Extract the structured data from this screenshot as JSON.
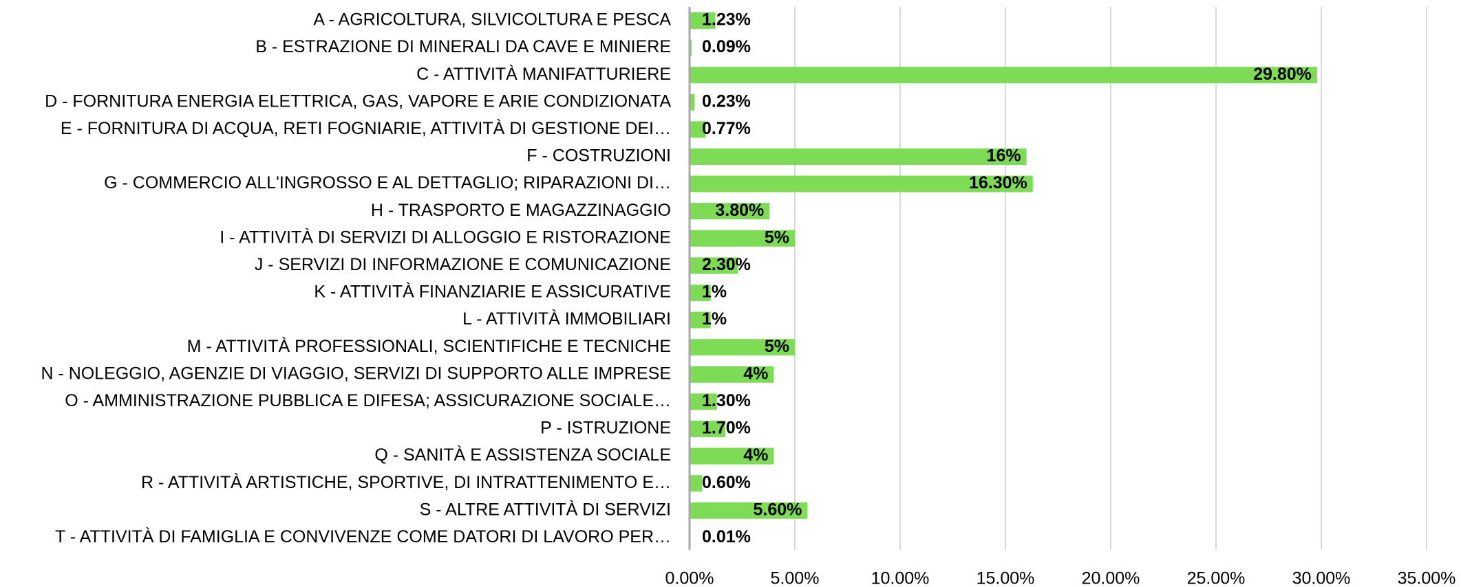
{
  "chart_data": {
    "type": "barh",
    "categories": [
      "A - AGRICOLTURA, SILVICOLTURA E PESCA",
      "B - ESTRAZIONE DI MINERALI DA CAVE E MINIERE",
      "C - ATTIVITÀ MANIFATTURIERE",
      "D - FORNITURA ENERGIA ELETTRICA, GAS, VAPORE E ARIE CONDIZIONATA",
      "E - FORNITURA DI ACQUA, RETI FOGNIARIE, ATTIVITÀ DI GESTIONE DEI…",
      "F - COSTRUZIONI",
      "G - COMMERCIO ALL'INGROSSO E AL DETTAGLIO; RIPARAZIONI DI…",
      "H - TRASPORTO E MAGAZZINAGGIO",
      "I - ATTIVITÀ DI SERVIZI DI ALLOGGIO E RISTORAZIONE",
      "J - SERVIZI DI INFORMAZIONE E COMUNICAZIONE",
      "K - ATTIVITÀ FINANZIARIE E ASSICURATIVE",
      "L - ATTIVITÀ IMMOBILIARI",
      "M - ATTIVITÀ PROFESSIONALI, SCIENTIFICHE E TECNICHE",
      "N - NOLEGGIO, AGENZIE DI VIAGGIO, SERVIZI DI SUPPORTO ALLE IMPRESE",
      "O - AMMINISTRAZIONE PUBBLICA E DIFESA; ASSICURAZIONE SOCIALE…",
      "P - ISTRUZIONE",
      "Q - SANITÀ E ASSISTENZA SOCIALE",
      "R - ATTIVITÀ ARTISTICHE, SPORTIVE, DI INTRATTENIMENTO E…",
      "S - ALTRE ATTIVITÀ DI SERVIZI",
      "T - ATTIVITÀ DI FAMIGLIA E CONVIVENZE COME DATORI DI LAVORO PER…"
    ],
    "values": [
      1.23,
      0.09,
      29.8,
      0.23,
      0.77,
      16,
      16.3,
      3.8,
      5,
      2.3,
      1,
      1,
      5,
      4,
      1.3,
      1.7,
      4,
      0.6,
      5.6,
      0.01
    ],
    "value_labels": [
      "1.23%",
      "0.09%",
      "29.80%",
      "0.23%",
      "0.77%",
      "16%",
      "16.30%",
      "3.80%",
      "5%",
      "2.30%",
      "1%",
      "1%",
      "5%",
      "4%",
      "1.30%",
      "1.70%",
      "4%",
      "0.60%",
      "5.60%",
      "0.01%"
    ],
    "color": "#7ddb55",
    "xlim": [
      0,
      35
    ],
    "xticks": [
      {
        "value": 0,
        "label": "0.00%"
      },
      {
        "value": 5,
        "label": "5.00%"
      },
      {
        "value": 10,
        "label": "10.00%"
      },
      {
        "value": 15,
        "label": "15.00%"
      },
      {
        "value": 20,
        "label": "20.00%"
      },
      {
        "value": 25,
        "label": "25.00%"
      },
      {
        "value": 30,
        "label": "30.00%"
      },
      {
        "value": 35,
        "label": "35.00%"
      }
    ],
    "grid": true
  }
}
